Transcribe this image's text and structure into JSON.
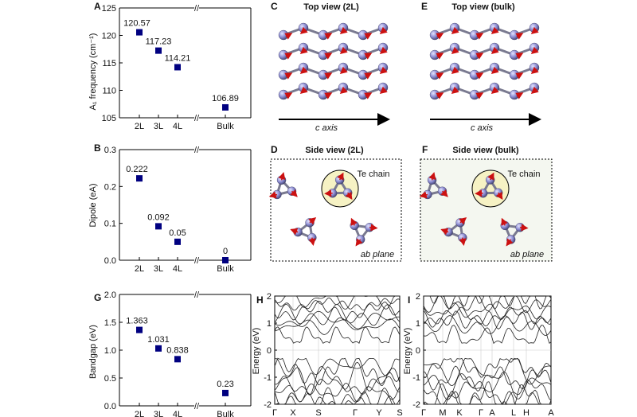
{
  "colors": {
    "marker": "#000080",
    "atom": "#8080c8",
    "bond": "#777788",
    "arrow": "#cc1111",
    "highlight": "#f6f2c4"
  },
  "chart_data": [
    {
      "id": "A",
      "type": "scatter",
      "categories": [
        "2L",
        "3L",
        "4L",
        "Bulk"
      ],
      "values": [
        120.57,
        117.23,
        114.21,
        106.89
      ],
      "value_labels": [
        "120.57",
        "117.23",
        "114.21",
        "106.89"
      ],
      "ylabel": "A₁ frequency (cm⁻¹)",
      "ylim": [
        105,
        125
      ],
      "yticks": [
        "105",
        "110",
        "115",
        "120",
        "125"
      ],
      "axis_break": "//"
    },
    {
      "id": "B",
      "type": "scatter",
      "categories": [
        "2L",
        "3L",
        "4L",
        "Bulk"
      ],
      "values": [
        0.222,
        0.092,
        0.05,
        0
      ],
      "value_labels": [
        "0.222",
        "0.092",
        "0.05",
        "0"
      ],
      "ylabel": "Dipole (eA)",
      "ylim": [
        0,
        0.3
      ],
      "yticks": [
        "0.0",
        "0.1",
        "0.2",
        "0.3"
      ],
      "axis_break": "//"
    },
    {
      "id": "G",
      "type": "scatter",
      "categories": [
        "2L",
        "3L",
        "4L",
        "Bulk"
      ],
      "values": [
        1.363,
        1.031,
        0.838,
        0.23
      ],
      "value_labels": [
        "1.363",
        "1.031",
        "0.838",
        "0.23"
      ],
      "ylabel": "Bandgap (eV)",
      "ylim": [
        0,
        2
      ],
      "yticks": [
        "0.0",
        "0.5",
        "1.0",
        "1.5",
        "2.0"
      ],
      "axis_break": "//"
    },
    {
      "id": "H",
      "type": "line",
      "ylabel": "Energy (eV)",
      "ylim": [
        -2,
        2
      ],
      "yticks": [
        "-2",
        "-1",
        "0",
        "1",
        "2"
      ],
      "kpoints": [
        "Γ",
        "X",
        "S",
        "Γ",
        "Y",
        "S"
      ]
    },
    {
      "id": "I",
      "type": "line",
      "ylabel": "Energy (eV)",
      "ylim": [
        -2,
        2
      ],
      "yticks": [
        "-2",
        "-1",
        "0",
        "1",
        "2"
      ],
      "kpoints": [
        "Γ",
        "M",
        "K",
        "Γ",
        "A",
        "L",
        "H",
        "A"
      ]
    }
  ],
  "structure_panels": {
    "C": {
      "letter": "C",
      "title": "Top view (2L)",
      "axis_label": "c axis"
    },
    "E": {
      "letter": "E",
      "title": "Top view (bulk)",
      "axis_label": "c axis"
    },
    "D": {
      "letter": "D",
      "title": "Side view (2L)",
      "chain_label": "Te chain",
      "plane_label": "ab plane"
    },
    "F": {
      "letter": "F",
      "title": "Side view (bulk)",
      "chain_label": "Te chain",
      "plane_label": "ab plane"
    }
  }
}
